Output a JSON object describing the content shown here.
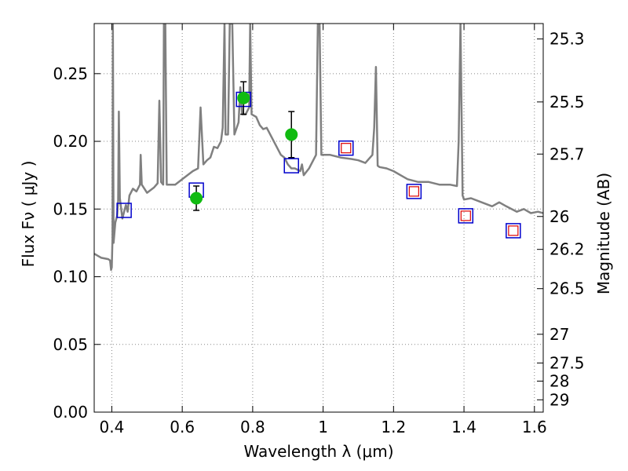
{
  "chart_data": {
    "type": "line",
    "xlabel": "Wavelength  λ (μm)",
    "ylabel_left": "Flux  Fν  ( μJy )",
    "ylabel_right": "Magnitude (AB)",
    "xlim": [
      0.35,
      1.625
    ],
    "ylim": [
      0.0,
      0.287
    ],
    "grid": true,
    "x_ticks": [
      0.4,
      0.6,
      0.8,
      1.0,
      1.2,
      1.4,
      1.6
    ],
    "x_tick_labels": [
      "0.4",
      "0.6",
      "0.8",
      "1",
      "1.2",
      "1.4",
      "1.6"
    ],
    "y_ticks": [
      0.0,
      0.05,
      0.1,
      0.15,
      0.2,
      0.25
    ],
    "y_tick_labels": [
      "0.00",
      "0.05",
      "0.10",
      "0.15",
      "0.20",
      "0.25"
    ],
    "right_ticks": [
      {
        "label": "25.3",
        "flux": 0.2756
      },
      {
        "label": "25.5",
        "flux": 0.2291
      },
      {
        "label": "25.7",
        "flux": 0.1906
      },
      {
        "label": "26",
        "flux": 0.1445
      },
      {
        "label": "26.2",
        "flux": 0.1202
      },
      {
        "label": "26.5",
        "flux": 0.0912
      },
      {
        "label": "27",
        "flux": 0.0575
      },
      {
        "label": "27.5",
        "flux": 0.0363
      },
      {
        "label": "28",
        "flux": 0.0229
      },
      {
        "label": "29",
        "flux": 0.0091
      }
    ],
    "colors": {
      "sed": "#808080",
      "model_box_blue": "#0000cc",
      "model_box_red": "#dd0000",
      "observed": "#11bb11",
      "error": "#000000",
      "grid": "#888888"
    },
    "series": [
      {
        "kind": "sed",
        "values": [
          [
            0.35,
            0.117
          ],
          [
            0.37,
            0.114
          ],
          [
            0.39,
            0.113
          ],
          [
            0.395,
            0.112
          ],
          [
            0.398,
            0.105
          ],
          [
            0.4,
            0.107
          ],
          [
            0.402,
            0.128
          ],
          [
            0.403,
            0.287
          ],
          [
            0.405,
            0.125
          ],
          [
            0.41,
            0.14
          ],
          [
            0.415,
            0.145
          ],
          [
            0.418,
            0.156
          ],
          [
            0.42,
            0.222
          ],
          [
            0.423,
            0.158
          ],
          [
            0.43,
            0.143
          ],
          [
            0.435,
            0.148
          ],
          [
            0.44,
            0.153
          ],
          [
            0.445,
            0.148
          ],
          [
            0.45,
            0.16
          ],
          [
            0.46,
            0.165
          ],
          [
            0.47,
            0.163
          ],
          [
            0.48,
            0.168
          ],
          [
            0.482,
            0.19
          ],
          [
            0.485,
            0.168
          ],
          [
            0.5,
            0.162
          ],
          [
            0.52,
            0.166
          ],
          [
            0.53,
            0.169
          ],
          [
            0.535,
            0.23
          ],
          [
            0.54,
            0.17
          ],
          [
            0.546,
            0.168
          ],
          [
            0.548,
            0.287
          ],
          [
            0.552,
            0.287
          ],
          [
            0.556,
            0.168
          ],
          [
            0.58,
            0.168
          ],
          [
            0.6,
            0.172
          ],
          [
            0.63,
            0.178
          ],
          [
            0.645,
            0.18
          ],
          [
            0.652,
            0.225
          ],
          [
            0.66,
            0.183
          ],
          [
            0.67,
            0.186
          ],
          [
            0.68,
            0.188
          ],
          [
            0.69,
            0.196
          ],
          [
            0.7,
            0.195
          ],
          [
            0.71,
            0.2
          ],
          [
            0.715,
            0.21
          ],
          [
            0.72,
            0.287
          ],
          [
            0.723,
            0.205
          ],
          [
            0.73,
            0.205
          ],
          [
            0.735,
            0.287
          ],
          [
            0.742,
            0.287
          ],
          [
            0.748,
            0.205
          ],
          [
            0.76,
            0.214
          ],
          [
            0.765,
            0.24
          ],
          [
            0.77,
            0.22
          ],
          [
            0.78,
            0.22
          ],
          [
            0.79,
            0.225
          ],
          [
            0.793,
            0.287
          ],
          [
            0.797,
            0.22
          ],
          [
            0.81,
            0.218
          ],
          [
            0.82,
            0.212
          ],
          [
            0.83,
            0.209
          ],
          [
            0.84,
            0.21
          ],
          [
            0.85,
            0.205
          ],
          [
            0.86,
            0.2
          ],
          [
            0.87,
            0.195
          ],
          [
            0.88,
            0.19
          ],
          [
            0.89,
            0.188
          ],
          [
            0.9,
            0.183
          ],
          [
            0.91,
            0.18
          ],
          [
            0.92,
            0.18
          ],
          [
            0.935,
            0.178
          ],
          [
            0.94,
            0.183
          ],
          [
            0.945,
            0.175
          ],
          [
            0.96,
            0.18
          ],
          [
            0.98,
            0.19
          ],
          [
            0.985,
            0.287
          ],
          [
            0.99,
            0.287
          ],
          [
            0.995,
            0.19
          ],
          [
            1.02,
            0.19
          ],
          [
            1.05,
            0.188
          ],
          [
            1.08,
            0.187
          ],
          [
            1.1,
            0.186
          ],
          [
            1.12,
            0.184
          ],
          [
            1.14,
            0.19
          ],
          [
            1.145,
            0.21
          ],
          [
            1.15,
            0.255
          ],
          [
            1.155,
            0.182
          ],
          [
            1.16,
            0.181
          ],
          [
            1.18,
            0.18
          ],
          [
            1.2,
            0.178
          ],
          [
            1.22,
            0.175
          ],
          [
            1.24,
            0.172
          ],
          [
            1.27,
            0.17
          ],
          [
            1.3,
            0.17
          ],
          [
            1.33,
            0.168
          ],
          [
            1.36,
            0.168
          ],
          [
            1.38,
            0.167
          ],
          [
            1.385,
            0.2
          ],
          [
            1.39,
            0.287
          ],
          [
            1.396,
            0.16
          ],
          [
            1.4,
            0.157
          ],
          [
            1.42,
            0.158
          ],
          [
            1.45,
            0.155
          ],
          [
            1.48,
            0.152
          ],
          [
            1.5,
            0.155
          ],
          [
            1.52,
            0.152
          ],
          [
            1.55,
            0.148
          ],
          [
            1.57,
            0.15
          ],
          [
            1.59,
            0.147
          ],
          [
            1.61,
            0.148
          ],
          [
            1.625,
            0.147
          ]
        ]
      },
      {
        "kind": "model_box",
        "values": [
          [
            0.435,
            0.149
          ],
          [
            0.64,
            0.164
          ],
          [
            0.774,
            0.231
          ],
          [
            0.91,
            0.182
          ],
          [
            1.065,
            0.195
          ],
          [
            1.258,
            0.163
          ],
          [
            1.405,
            0.145
          ],
          [
            1.54,
            0.134
          ]
        ]
      },
      {
        "kind": "model_box_inner",
        "values": [
          [
            1.065,
            0.195
          ],
          [
            1.258,
            0.163
          ],
          [
            1.405,
            0.145
          ],
          [
            1.54,
            0.134
          ]
        ]
      },
      {
        "kind": "observed",
        "values": [
          {
            "x": 0.64,
            "y": 0.158,
            "err": 0.009
          },
          {
            "x": 0.774,
            "y": 0.232,
            "err": 0.012
          },
          {
            "x": 0.91,
            "y": 0.205,
            "err": 0.017
          }
        ]
      }
    ]
  }
}
